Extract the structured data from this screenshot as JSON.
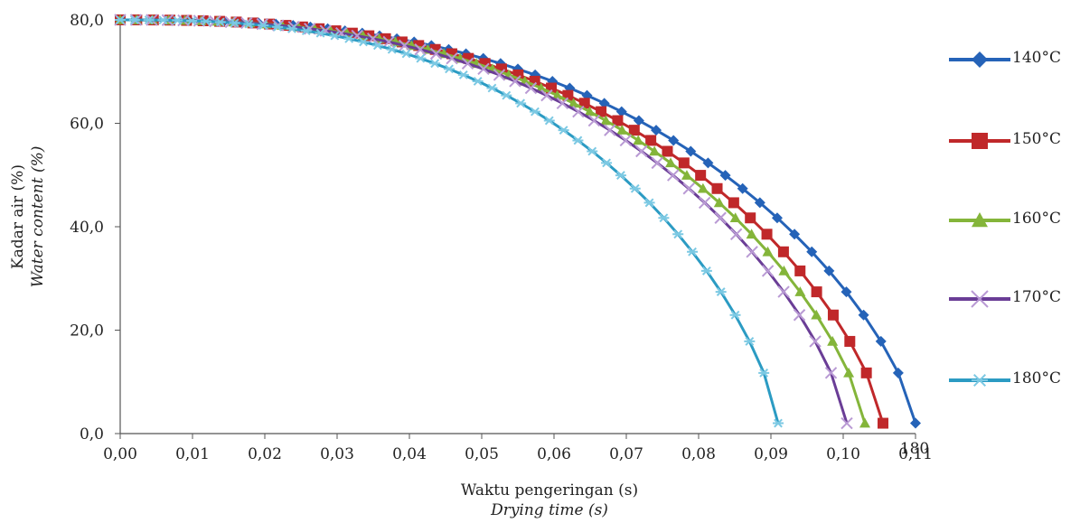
{
  "chart_data": {
    "type": "line",
    "xlabel": "Waktu pengeringan (s)",
    "xlabel_italic": "Drying time (s)",
    "ylabel": "Kadar air (%)",
    "ylabel_italic": "Water content (%)",
    "xlim": [
      0,
      0.11
    ],
    "ylim": [
      0,
      80
    ],
    "x_ticks": [
      "0,00",
      "0,01",
      "0,02",
      "0,03",
      "0,04",
      "0,05",
      "0,06",
      "0,07",
      "0,08",
      "0,09",
      "0,10",
      "0,11"
    ],
    "y_ticks": [
      "0,0",
      "20,0",
      "40,0",
      "60,0",
      "80,0"
    ],
    "stray_label": "180",
    "grid": false,
    "legend_position": "right",
    "series": [
      {
        "name": "140°C",
        "color": "#2563b8",
        "marker": "diamond",
        "end_x": 0.11
      },
      {
        "name": "150°C",
        "color": "#c0282a",
        "marker": "square",
        "end_x": 0.1055
      },
      {
        "name": "160°C",
        "color": "#84b53a",
        "marker": "triangle",
        "end_x": 0.103
      },
      {
        "name": "170°C",
        "color": "#6a3d96",
        "marker": "x",
        "end_x": 0.1005
      },
      {
        "name": "180°C",
        "color": "#2b9bc3",
        "marker": "star",
        "end_x": 0.091
      }
    ]
  }
}
